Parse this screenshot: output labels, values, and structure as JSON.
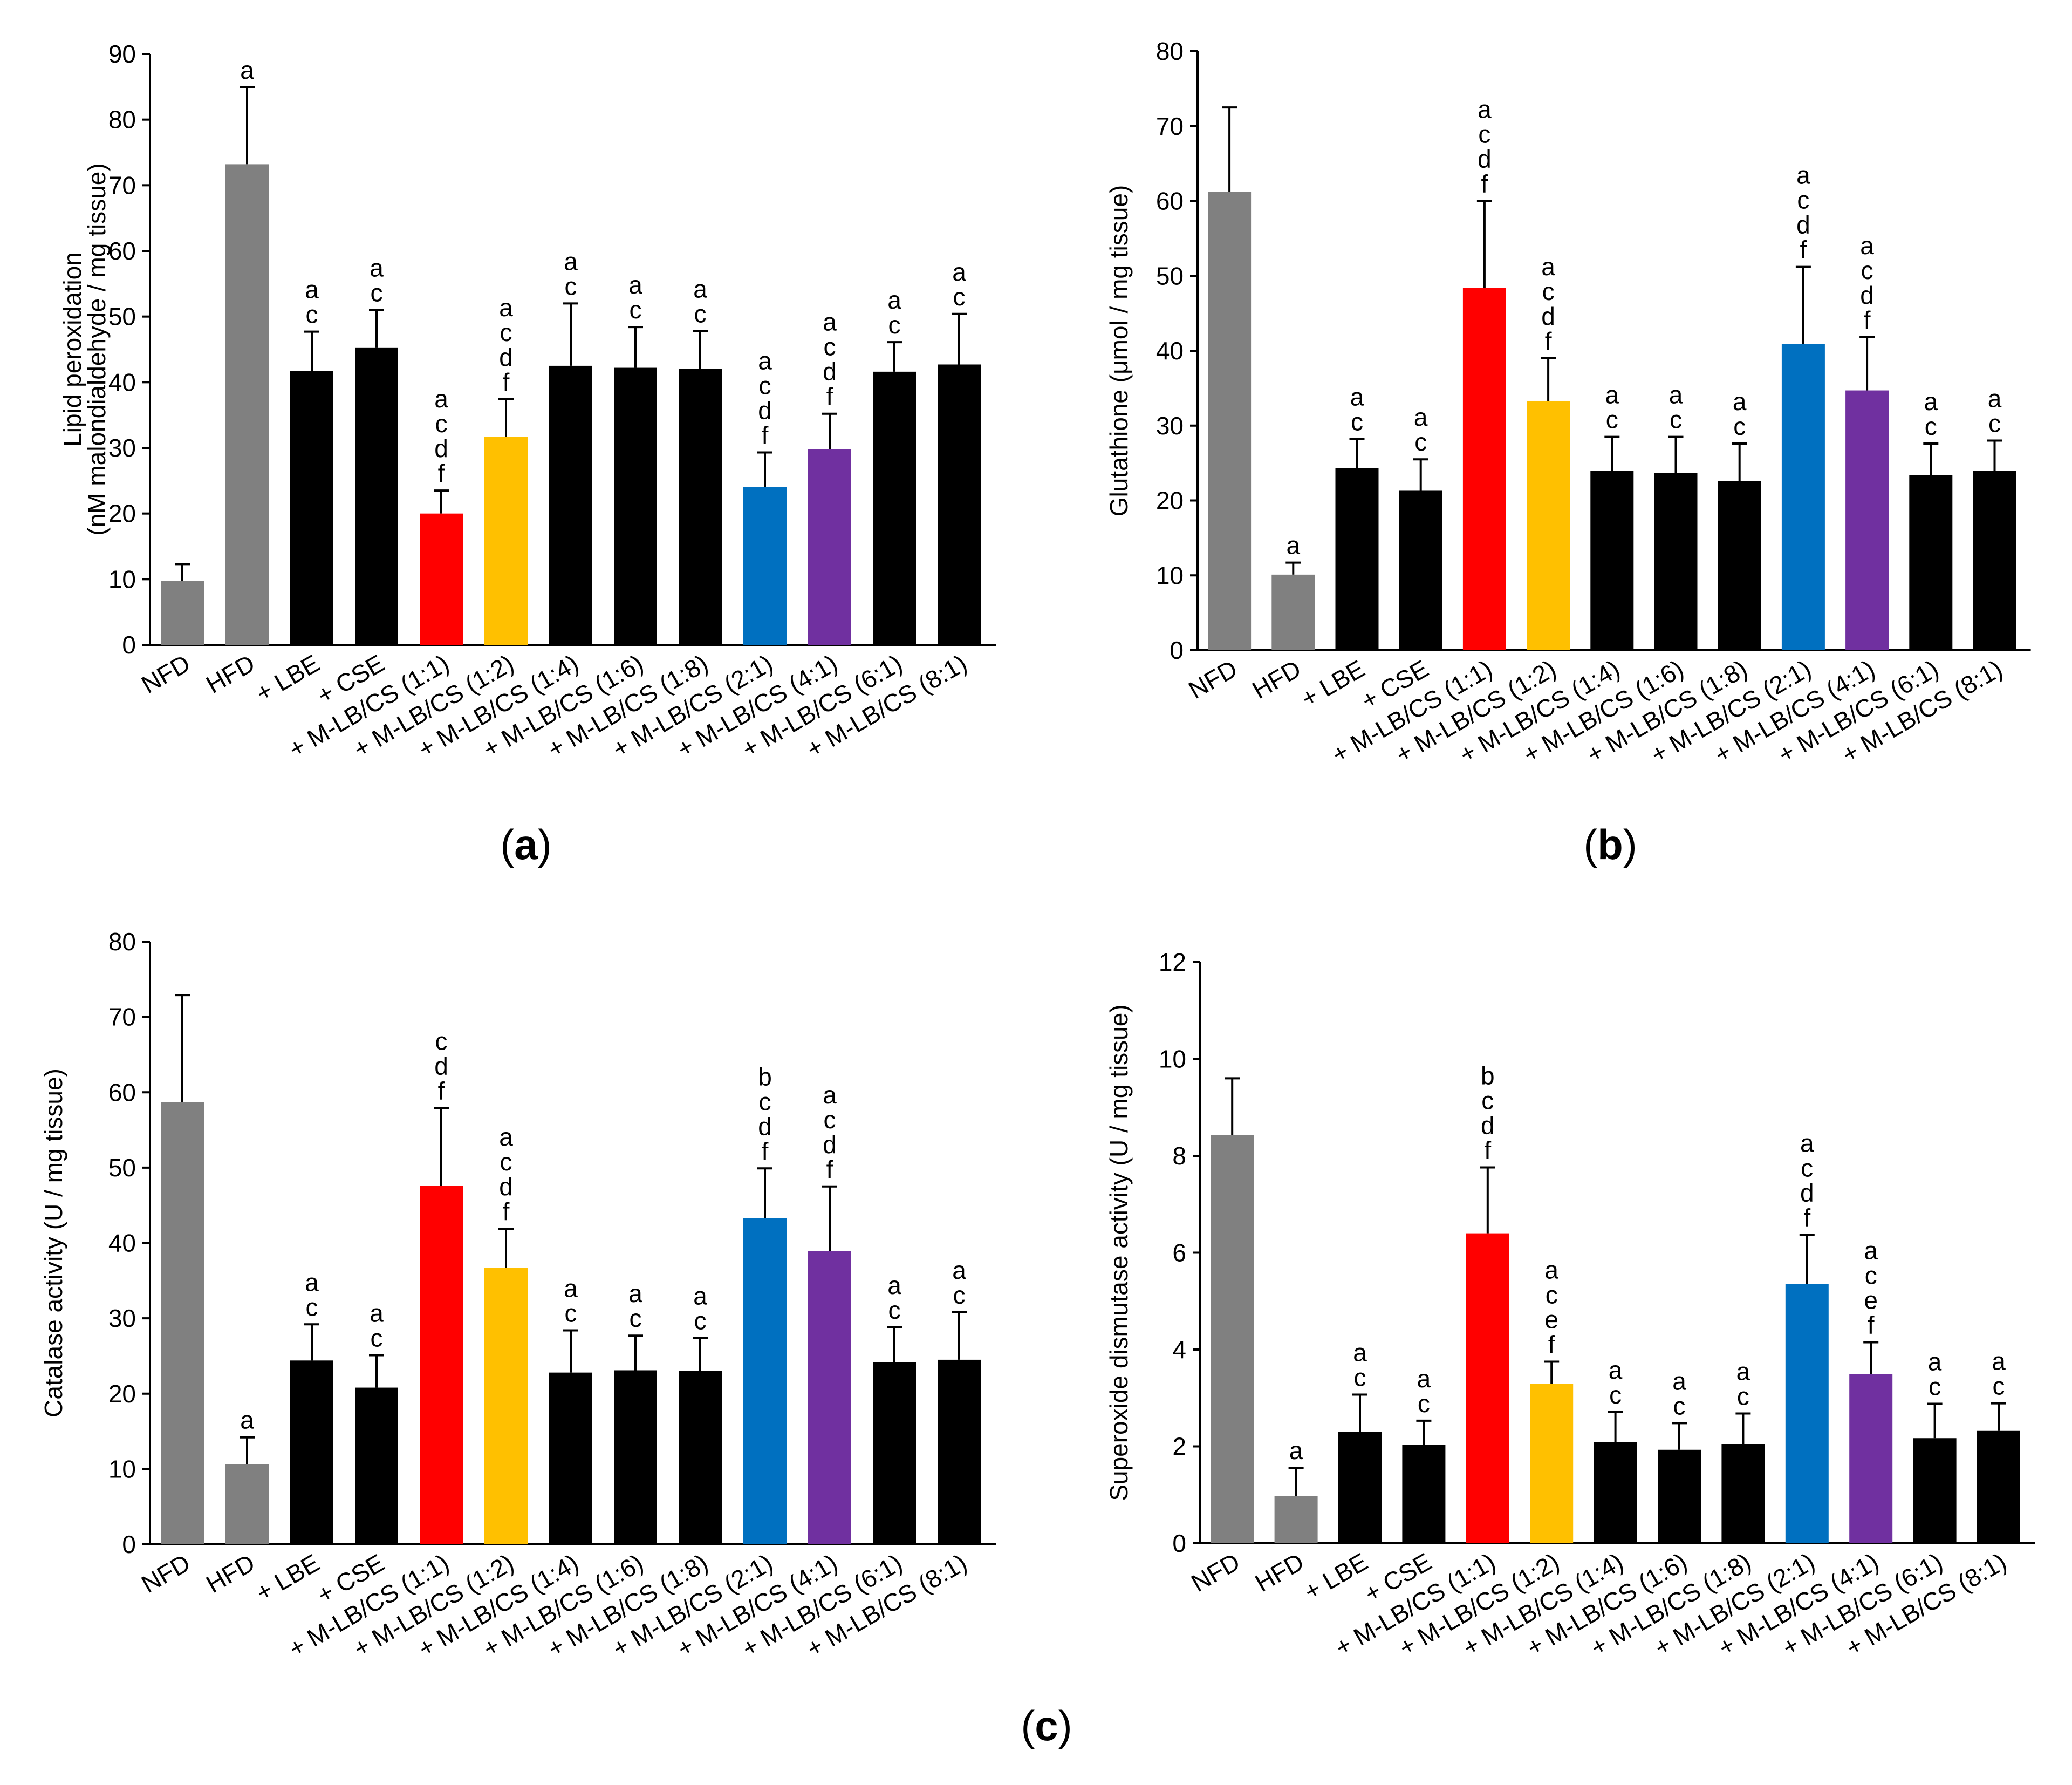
{
  "figure": {
    "panel_labels": [
      {
        "open": "(",
        "letter": "a",
        "close": ")"
      },
      {
        "open": "(",
        "letter": "b",
        "close": ")"
      },
      {
        "open": "(",
        "letter": "c",
        "close": ")"
      }
    ]
  },
  "chart_data": [
    {
      "type": "bar",
      "id": "a",
      "title": "",
      "xlabel": "",
      "ylabel": "Lipid peroxidation",
      "ylabel2": "(nM malondialdehyde / mg tissue)",
      "ylim": [
        0,
        90
      ],
      "yticks": [
        0,
        10,
        20,
        30,
        40,
        50,
        60,
        70,
        80,
        90
      ],
      "categories": [
        "NFD",
        "HFD",
        "+ LBE",
        "+ CSE",
        "+ M-LB/CS (1:1)",
        "+ M-LB/CS (1:2)",
        "+ M-LB/CS (1:4)",
        "+ M-LB/CS (1:6)",
        "+ M-LB/CS (1:8)",
        "+ M-LB/CS (2:1)",
        "+ M-LB/CS (4:1)",
        "+ M-LB/CS (6:1)",
        "+ M-LB/CS (8:1)"
      ],
      "values": [
        9.7,
        73.2,
        41.7,
        45.3,
        20.0,
        31.7,
        42.5,
        42.2,
        42.0,
        24.0,
        29.8,
        41.6,
        42.7
      ],
      "errors": [
        2.6,
        11.7,
        6.0,
        5.7,
        3.5,
        5.7,
        9.5,
        6.2,
        5.8,
        5.3,
        5.4,
        4.5,
        7.7
      ],
      "colors": [
        "#808080",
        "#808080",
        "#000000",
        "#000000",
        "#ff0000",
        "#ffc000",
        "#000000",
        "#000000",
        "#000000",
        "#0070c0",
        "#7030a0",
        "#000000",
        "#000000"
      ],
      "significance": [
        "",
        "a",
        "a c",
        "a c",
        "a c d f",
        "a c d f",
        "a c",
        "a c",
        "a c",
        "a c d f",
        "a c d f",
        "a c",
        "a c"
      ]
    },
    {
      "type": "bar",
      "id": "b",
      "title": "",
      "xlabel": "",
      "ylabel": "Glutathione (μmol / mg tissue)",
      "ylabel2": "",
      "ylim": [
        0,
        80
      ],
      "yticks": [
        0,
        10,
        20,
        30,
        40,
        50,
        60,
        70,
        80
      ],
      "categories": [
        "NFD",
        "HFD",
        "+ LBE",
        "+ CSE",
        "+ M-LB/CS (1:1)",
        "+ M-LB/CS (1:2)",
        "+ M-LB/CS (1:4)",
        "+ M-LB/CS (1:6)",
        "+ M-LB/CS (1:8)",
        "+ M-LB/CS (2:1)",
        "+ M-LB/CS (4:1)",
        "+ M-LB/CS (6:1)",
        "+ M-LB/CS (8:1)"
      ],
      "values": [
        61.2,
        10.1,
        24.3,
        21.3,
        48.4,
        33.3,
        24.0,
        23.7,
        22.6,
        40.9,
        34.7,
        23.4,
        24.0
      ],
      "errors": [
        11.3,
        1.6,
        3.9,
        4.2,
        11.6,
        5.7,
        4.5,
        4.8,
        5.0,
        10.3,
        7.1,
        4.2,
        4.0
      ],
      "colors": [
        "#808080",
        "#808080",
        "#000000",
        "#000000",
        "#ff0000",
        "#ffc000",
        "#000000",
        "#000000",
        "#000000",
        "#0070c0",
        "#7030a0",
        "#000000",
        "#000000"
      ],
      "significance": [
        "",
        "a",
        "a c",
        "a c",
        "a c d f",
        "a c d f",
        "a c",
        "a c",
        "a c",
        "a c d f",
        "a c d f",
        "a c",
        "a c"
      ]
    },
    {
      "type": "bar",
      "id": "c1",
      "title": "",
      "xlabel": "",
      "ylabel": "Catalase activity (U / mg tissue)",
      "ylabel2": "",
      "ylim": [
        0,
        80
      ],
      "yticks": [
        0,
        10,
        20,
        30,
        40,
        50,
        60,
        70,
        80
      ],
      "categories": [
        "NFD",
        "HFD",
        "+ LBE",
        "+ CSE",
        "+ M-LB/CS (1:1)",
        "+ M-LB/CS (1:2)",
        "+ M-LB/CS (1:4)",
        "+ M-LB/CS (1:6)",
        "+ M-LB/CS (1:8)",
        "+ M-LB/CS (2:1)",
        "+ M-LB/CS (4:1)",
        "+ M-LB/CS (6:1)",
        "+ M-LB/CS (8:1)"
      ],
      "values": [
        58.7,
        10.6,
        24.4,
        20.8,
        47.6,
        36.7,
        22.8,
        23.1,
        23.0,
        43.3,
        38.9,
        24.2,
        24.5
      ],
      "errors": [
        14.2,
        3.6,
        4.8,
        4.3,
        10.3,
        5.2,
        5.6,
        4.6,
        4.4,
        6.6,
        8.6,
        4.6,
        6.3
      ],
      "colors": [
        "#808080",
        "#808080",
        "#000000",
        "#000000",
        "#ff0000",
        "#ffc000",
        "#000000",
        "#000000",
        "#000000",
        "#0070c0",
        "#7030a0",
        "#000000",
        "#000000"
      ],
      "significance": [
        "",
        "a",
        "a c",
        "a c",
        "c d f",
        "a c d f",
        "a c",
        "a c",
        "a c",
        "b c d f",
        "a c d f",
        "a c",
        "a c"
      ]
    },
    {
      "type": "bar",
      "id": "c2",
      "title": "",
      "xlabel": "",
      "ylabel": "Superoxide dismutase activity (U / mg tissue)",
      "ylabel2": "",
      "ylim": [
        0,
        12
      ],
      "yticks": [
        0,
        2,
        4,
        6,
        8,
        10,
        12
      ],
      "categories": [
        "NFD",
        "HFD",
        "+ LBE",
        "+ CSE",
        "+ M-LB/CS (1:1)",
        "+ M-LB/CS (1:2)",
        "+ M-LB/CS (1:4)",
        "+ M-LB/CS (1:6)",
        "+ M-LB/CS (1:8)",
        "+ M-LB/CS (2:1)",
        "+ M-LB/CS (4:1)",
        "+ M-LB/CS (6:1)",
        "+ M-LB/CS (8:1)"
      ],
      "values": [
        8.43,
        0.97,
        2.3,
        2.03,
        6.4,
        3.29,
        2.09,
        1.93,
        2.05,
        5.35,
        3.49,
        2.17,
        2.32
      ],
      "errors": [
        1.17,
        0.59,
        0.77,
        0.5,
        1.36,
        0.46,
        0.62,
        0.55,
        0.63,
        1.02,
        0.66,
        0.71,
        0.57
      ],
      "colors": [
        "#808080",
        "#808080",
        "#000000",
        "#000000",
        "#ff0000",
        "#ffc000",
        "#000000",
        "#000000",
        "#000000",
        "#0070c0",
        "#7030a0",
        "#000000",
        "#000000"
      ],
      "significance": [
        "",
        "a",
        "a c",
        "a c",
        "b c d f",
        "a c e f",
        "a c",
        "a c",
        "a c",
        "a c d f",
        "a c e f",
        "a c",
        "a c"
      ]
    }
  ]
}
